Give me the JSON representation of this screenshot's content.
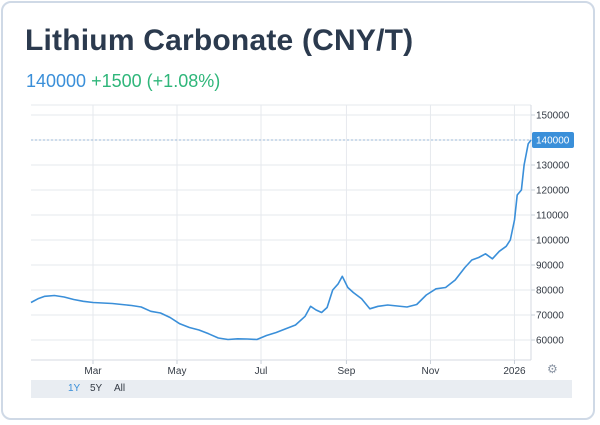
{
  "header": {
    "title": "Lithium Carbonate (CNY/T)",
    "price": "140000",
    "change": "+1500",
    "change_pct": "(+1.08%)"
  },
  "range_selector": {
    "buttons": [
      "1Y",
      "5Y",
      "All"
    ],
    "active": "1Y"
  },
  "colors": {
    "line": "#3a8fd9",
    "up": "#2fb67a",
    "title": "#2b3a4e",
    "label_bg": "#3a8fd9"
  },
  "icons": {
    "settings": "gear-icon"
  },
  "chart_data": {
    "type": "line",
    "title": "Lithium Carbonate (CNY/T)",
    "xlabel": "",
    "ylabel": "",
    "x_ticks": [
      {
        "label": "Mar",
        "x": "2025-03-01"
      },
      {
        "label": "May",
        "x": "2025-05-01"
      },
      {
        "label": "Jul",
        "x": "2025-07-01"
      },
      {
        "label": "Sep",
        "x": "2025-09-01"
      },
      {
        "label": "Nov",
        "x": "2025-11-01"
      },
      {
        "label": "2026",
        "x": "2026-01-01"
      }
    ],
    "y_ticks": [
      60000,
      70000,
      80000,
      90000,
      100000,
      110000,
      120000,
      130000,
      140000,
      150000
    ],
    "xlim": [
      "2025-01-15",
      "2026-01-13"
    ],
    "ylim": [
      52000,
      154000
    ],
    "last_value": 140000,
    "grid": true,
    "series": [
      {
        "points": [
          [
            "2025-01-15",
            75000
          ],
          [
            "2025-01-20",
            76500
          ],
          [
            "2025-01-25",
            77500
          ],
          [
            "2025-02-01",
            77800
          ],
          [
            "2025-02-08",
            77200
          ],
          [
            "2025-02-15",
            76200
          ],
          [
            "2025-02-22",
            75500
          ],
          [
            "2025-03-01",
            75000
          ],
          [
            "2025-03-08",
            74800
          ],
          [
            "2025-03-15",
            74600
          ],
          [
            "2025-03-22",
            74200
          ],
          [
            "2025-03-29",
            73800
          ],
          [
            "2025-04-05",
            73200
          ],
          [
            "2025-04-12",
            71500
          ],
          [
            "2025-04-19",
            70800
          ],
          [
            "2025-04-26",
            69000
          ],
          [
            "2025-05-03",
            66500
          ],
          [
            "2025-05-10",
            65000
          ],
          [
            "2025-05-17",
            64000
          ],
          [
            "2025-05-24",
            62500
          ],
          [
            "2025-05-31",
            60800
          ],
          [
            "2025-06-07",
            60200
          ],
          [
            "2025-06-14",
            60500
          ],
          [
            "2025-06-21",
            60400
          ],
          [
            "2025-06-28",
            60200
          ],
          [
            "2025-07-05",
            61800
          ],
          [
            "2025-07-12",
            63000
          ],
          [
            "2025-07-19",
            64500
          ],
          [
            "2025-07-26",
            66000
          ],
          [
            "2025-08-02",
            69500
          ],
          [
            "2025-08-06",
            73500
          ],
          [
            "2025-08-10",
            72000
          ],
          [
            "2025-08-14",
            71000
          ],
          [
            "2025-08-18",
            73000
          ],
          [
            "2025-08-22",
            80000
          ],
          [
            "2025-08-26",
            82500
          ],
          [
            "2025-08-29",
            85500
          ],
          [
            "2025-09-02",
            81000
          ],
          [
            "2025-09-06",
            79000
          ],
          [
            "2025-09-12",
            76500
          ],
          [
            "2025-09-18",
            72500
          ],
          [
            "2025-09-24",
            73500
          ],
          [
            "2025-10-01",
            74000
          ],
          [
            "2025-10-08",
            73600
          ],
          [
            "2025-10-15",
            73200
          ],
          [
            "2025-10-22",
            74200
          ],
          [
            "2025-10-29",
            78000
          ],
          [
            "2025-11-05",
            80500
          ],
          [
            "2025-11-12",
            81000
          ],
          [
            "2025-11-19",
            84000
          ],
          [
            "2025-11-26",
            89000
          ],
          [
            "2025-12-01",
            92000
          ],
          [
            "2025-12-06",
            93000
          ],
          [
            "2025-12-11",
            94500
          ],
          [
            "2025-12-16",
            92500
          ],
          [
            "2025-12-21",
            95500
          ],
          [
            "2025-12-26",
            97500
          ],
          [
            "2025-12-29",
            100000
          ],
          [
            "2026-01-01",
            108000
          ],
          [
            "2026-01-03",
            118000
          ],
          [
            "2026-01-06",
            120000
          ],
          [
            "2026-01-08",
            130000
          ],
          [
            "2026-01-11",
            138500
          ],
          [
            "2026-01-13",
            140000
          ]
        ]
      }
    ]
  }
}
